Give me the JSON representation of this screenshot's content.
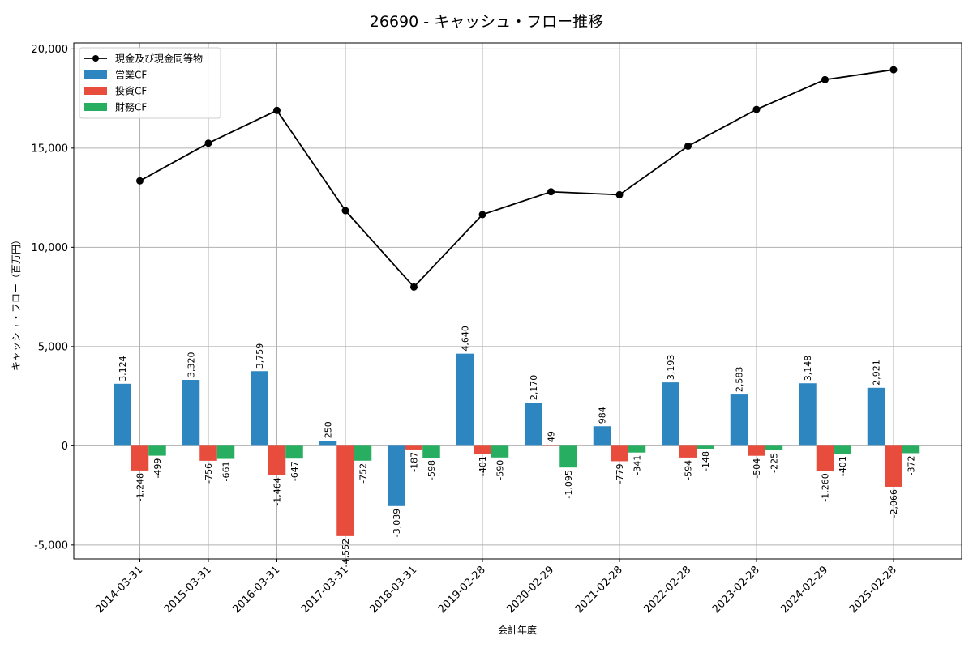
{
  "chart_data": {
    "type": "bar",
    "title": "26690 - キャッシュ・フロー推移",
    "xlabel": "会計年度",
    "ylabel": "キャッシュ・フロー（百万円）",
    "categories": [
      "2014-03-31",
      "2015-03-31",
      "2016-03-31",
      "2017-03-31",
      "2018-03-31",
      "2019-02-28",
      "2020-02-29",
      "2021-02-28",
      "2022-02-28",
      "2023-02-28",
      "2024-02-29",
      "2025-02-28"
    ],
    "ylim": [
      -5700,
      20300
    ],
    "yticks": [
      -5000,
      0,
      5000,
      10000,
      15000,
      20000
    ],
    "ytick_labels": [
      "-5,000",
      "0",
      "5,000",
      "10,000",
      "15,000",
      "20,000"
    ],
    "grid": true,
    "legend_position": "top-left",
    "series": [
      {
        "name": "営業CF",
        "kind": "bar",
        "color": "#2e86c1",
        "values": [
          3124,
          3320,
          3759,
          250,
          -3039,
          4640,
          2170,
          984,
          3193,
          2583,
          3148,
          2921
        ],
        "labels": [
          "3,124",
          "3,320",
          "3,759",
          "250",
          "-3,039",
          "4,640",
          "2,170",
          "984",
          "3,193",
          "2,583",
          "3,148",
          "2,921"
        ]
      },
      {
        "name": "投資CF",
        "kind": "bar",
        "color": "#e74c3c",
        "values": [
          -1248,
          -756,
          -1464,
          -4552,
          -187,
          -401,
          49,
          -779,
          -594,
          -504,
          -1260,
          -2066
        ],
        "labels": [
          "-1,248",
          "-756",
          "-1,464",
          "-4,552",
          "-187",
          "-401",
          "49",
          "-779",
          "-594",
          "-504",
          "-1,260",
          "-2,066"
        ]
      },
      {
        "name": "財務CF",
        "kind": "bar",
        "color": "#27ae60",
        "values": [
          -499,
          -661,
          -647,
          -752,
          -598,
          -590,
          -1095,
          -341,
          -148,
          -225,
          -401,
          -372
        ],
        "labels": [
          "-499",
          "-661",
          "-647",
          "-752",
          "-598",
          "-590",
          "-1,095",
          "-341",
          "-148",
          "-225",
          "-401",
          "-372"
        ]
      },
      {
        "name": "現金及び現金同等物",
        "kind": "line",
        "color": "#000000",
        "values": [
          13350,
          15250,
          16900,
          11850,
          8000,
          11650,
          12800,
          12650,
          15100,
          16950,
          18450,
          18950
        ]
      }
    ]
  }
}
